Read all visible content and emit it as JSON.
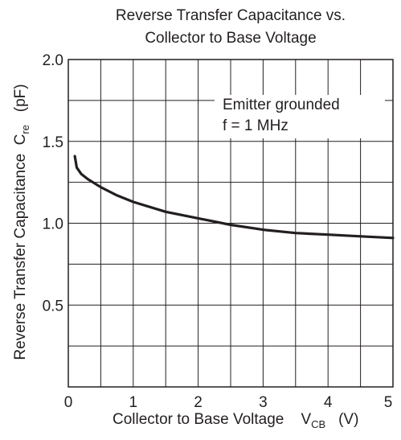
{
  "chart_data": {
    "type": "line",
    "title_line1": "Reverse Transfer Capacitance vs.",
    "title_line2": "Collector to Base Voltage",
    "ylabel_text": "Reverse Transfer Capacitance",
    "ylabel_symbol": "C",
    "ylabel_sub": "re",
    "ylabel_unit": "(pF)",
    "xlabel_text": "Collector to Base Voltage",
    "xlabel_symbol": "V",
    "xlabel_sub": "CB",
    "xlabel_unit": "(V)",
    "annotation_line1": "Emitter grounded",
    "annotation_line2": "f = 1 MHz",
    "xlim": [
      0,
      5
    ],
    "ylim": [
      0,
      2.0
    ],
    "x_ticks": [
      "0",
      "1",
      "2",
      "3",
      "4",
      "5"
    ],
    "y_ticks": [
      "0.5",
      "1.0",
      "1.5",
      "2.0"
    ],
    "grid": true,
    "x_grid_step": 0.5,
    "y_grid_step": 0.25,
    "series": [
      {
        "x": [
          0.1,
          0.13,
          0.2,
          0.3,
          0.5,
          0.75,
          1.0,
          1.5,
          2.0,
          2.5,
          3.0,
          3.5,
          4.0,
          4.5,
          5.0
        ],
        "y": [
          1.41,
          1.34,
          1.3,
          1.27,
          1.22,
          1.17,
          1.13,
          1.07,
          1.03,
          0.99,
          0.96,
          0.94,
          0.93,
          0.92,
          0.91
        ]
      }
    ],
    "line_color": "#231f20"
  }
}
